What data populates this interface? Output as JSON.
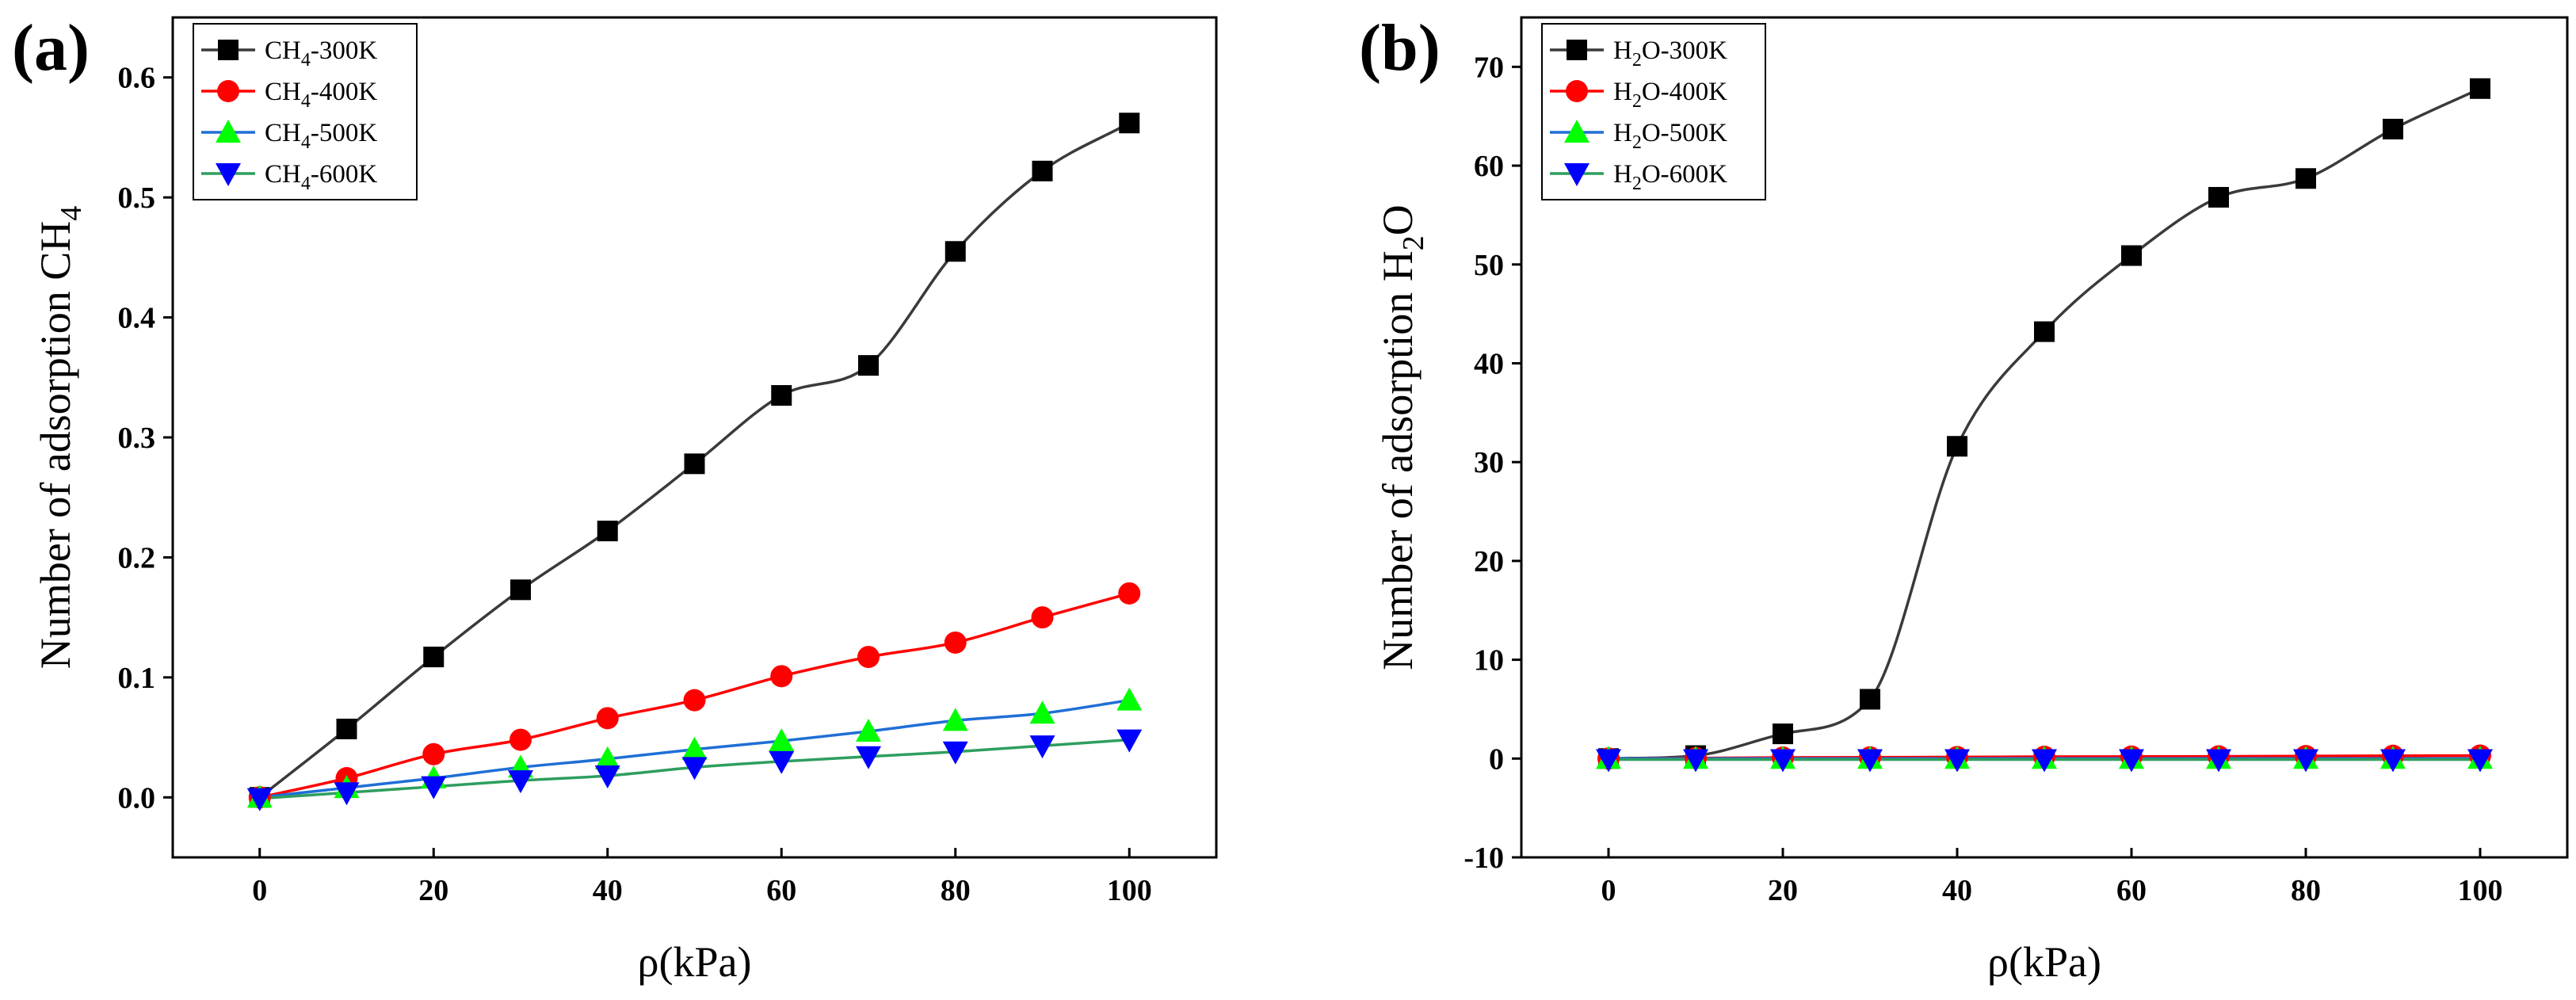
{
  "chart_data": [
    {
      "type": "line",
      "panel_label": "(a)",
      "xlabel": "ρ(kPa)",
      "ylabel_base": "Number of adsorption CH",
      "ylabel_sub": "4",
      "xlim": [
        -10,
        110
      ],
      "ylim": [
        -0.05,
        0.65
      ],
      "xticks": [
        0,
        20,
        40,
        60,
        80,
        100
      ],
      "xtick_labels": [
        "0",
        "20",
        "40",
        "60",
        "80",
        "100"
      ],
      "yticks": [
        0,
        0.1,
        0.2,
        0.3,
        0.4,
        0.5,
        0.6
      ],
      "ytick_labels": [
        "0.0",
        "0.1",
        "0.2",
        "0.3",
        "0.4",
        "0.5",
        "0.6"
      ],
      "legend_position": "top-left",
      "x": [
        0,
        10,
        20,
        30,
        40,
        50,
        60,
        70,
        80,
        90,
        100
      ],
      "series": [
        {
          "name": "CH4-300K",
          "label_pre": "CH",
          "label_sub": "4",
          "label_post": "-300K",
          "marker": "square",
          "color": "#000000",
          "line_color": "#3a3a3a",
          "values": [
            0.0,
            0.057,
            0.117,
            0.173,
            0.222,
            0.278,
            0.335,
            0.36,
            0.455,
            0.522,
            0.562
          ]
        },
        {
          "name": "CH4-400K",
          "label_pre": "CH",
          "label_sub": "4",
          "label_post": "-400K",
          "marker": "circle",
          "color": "#ff0000",
          "line_color": "#ff0000",
          "values": [
            0.0,
            0.016,
            0.036,
            0.048,
            0.066,
            0.081,
            0.101,
            0.117,
            0.129,
            0.15,
            0.17
          ]
        },
        {
          "name": "CH4-500K",
          "label_pre": "CH",
          "label_sub": "4",
          "label_post": "-500K",
          "marker": "triangle-up",
          "color": "#00ff00",
          "line_color": "#1f6fd6",
          "values": [
            0.0,
            0.008,
            0.016,
            0.025,
            0.032,
            0.04,
            0.047,
            0.055,
            0.064,
            0.07,
            0.081
          ]
        },
        {
          "name": "CH4-600K",
          "label_pre": "CH",
          "label_sub": "4",
          "label_post": "-600K",
          "marker": "triangle-down",
          "color": "#0000ff",
          "line_color": "#2e9e5e",
          "values": [
            -0.001,
            0.004,
            0.009,
            0.014,
            0.018,
            0.025,
            0.03,
            0.034,
            0.038,
            0.043,
            0.048
          ]
        }
      ]
    },
    {
      "type": "line",
      "panel_label": "(b)",
      "xlabel": "ρ(kPa)",
      "ylabel_base": "Number of adsorption H",
      "ylabel_sub": "2",
      "ylabel_post": "O",
      "xlim": [
        -10,
        110
      ],
      "ylim": [
        -10,
        75
      ],
      "xticks": [
        0,
        20,
        40,
        60,
        80,
        100
      ],
      "xtick_labels": [
        "0",
        "20",
        "40",
        "60",
        "80",
        "100"
      ],
      "yticks": [
        -10,
        0,
        10,
        20,
        30,
        40,
        50,
        60,
        70
      ],
      "ytick_labels": [
        "-10",
        "0",
        "10",
        "20",
        "30",
        "40",
        "50",
        "60",
        "70"
      ],
      "legend_position": "top-left",
      "x": [
        0,
        10,
        20,
        30,
        40,
        50,
        60,
        70,
        80,
        90,
        100
      ],
      "series": [
        {
          "name": "H2O-300K",
          "label_pre": "H",
          "label_sub": "2",
          "label_post": "O-300K",
          "marker": "square",
          "color": "#000000",
          "line_color": "#3a3a3a",
          "values": [
            0.0,
            0.3,
            2.5,
            6.0,
            31.6,
            43.2,
            50.9,
            56.8,
            58.7,
            63.7,
            67.8
          ]
        },
        {
          "name": "H2O-400K",
          "label_pre": "H",
          "label_sub": "2",
          "label_post": "O-400K",
          "marker": "circle",
          "color": "#ff0000",
          "line_color": "#ff0000",
          "values": [
            0.0,
            0.05,
            0.1,
            0.12,
            0.15,
            0.18,
            0.2,
            0.22,
            0.25,
            0.28,
            0.3
          ]
        },
        {
          "name": "H2O-500K",
          "label_pre": "H",
          "label_sub": "2",
          "label_post": "O-500K",
          "marker": "triangle-up",
          "color": "#00ff00",
          "line_color": "#1f6fd6",
          "values": [
            0.0,
            0.0,
            0.0,
            0.0,
            0.0,
            0.0,
            0.0,
            0.0,
            0.0,
            0.0,
            0.0
          ]
        },
        {
          "name": "H2O-600K",
          "label_pre": "H",
          "label_sub": "2",
          "label_post": "O-600K",
          "marker": "triangle-down",
          "color": "#0000ff",
          "line_color": "#2e9e5e",
          "values": [
            -0.1,
            -0.1,
            -0.1,
            -0.1,
            -0.1,
            -0.1,
            -0.1,
            -0.1,
            -0.1,
            -0.1,
            -0.1
          ]
        }
      ]
    }
  ]
}
